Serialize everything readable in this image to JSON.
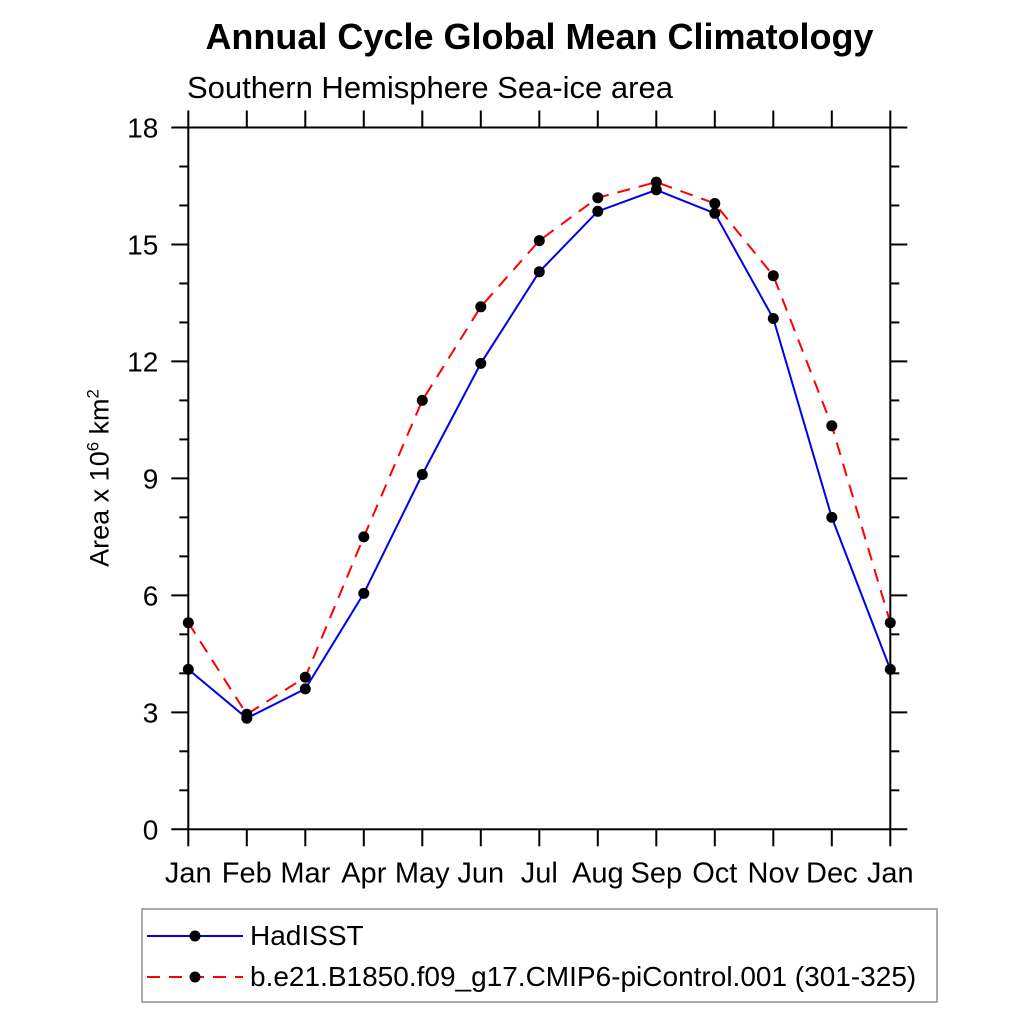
{
  "chart_data": {
    "type": "line",
    "title": "Annual Cycle Global Mean Climatology",
    "subtitle": "Southern Hemisphere Sea-ice area",
    "ylabel_rich": [
      {
        "text": "Area x 10"
      },
      {
        "text": "6",
        "sup": true
      },
      {
        "text": " km",
        "sup": false
      },
      {
        "text": "2",
        "sup": true
      }
    ],
    "x_tick_labels": [
      "Jan",
      "Feb",
      "Mar",
      "Apr",
      "May",
      "Jun",
      "Jul",
      "Aug",
      "Sep",
      "Oct",
      "Nov",
      "Dec",
      "Jan"
    ],
    "y_ticks_major": [
      0,
      3,
      6,
      9,
      12,
      15,
      18
    ],
    "y_minor_step": 1,
    "ylim": [
      0,
      18
    ],
    "grid": false,
    "frame_color": "#000000",
    "marker_color": "#000000",
    "legend_position": "bottom",
    "series": [
      {
        "name": "HadISST",
        "color": "#0000ee",
        "style": "solid",
        "marker": "circle",
        "values": [
          4.1,
          2.85,
          3.6,
          6.05,
          9.1,
          11.95,
          14.3,
          15.85,
          16.4,
          15.8,
          13.1,
          8.0,
          4.1
        ]
      },
      {
        "name": "b.e21.B1850.f09_g17.CMIP6-piControl.001 (301-325)",
        "color": "#ff0000",
        "style": "dashed",
        "marker": "circle",
        "values": [
          5.3,
          2.95,
          3.9,
          7.5,
          11.0,
          13.4,
          15.1,
          16.2,
          16.6,
          16.05,
          14.2,
          10.35,
          5.3
        ]
      }
    ]
  }
}
